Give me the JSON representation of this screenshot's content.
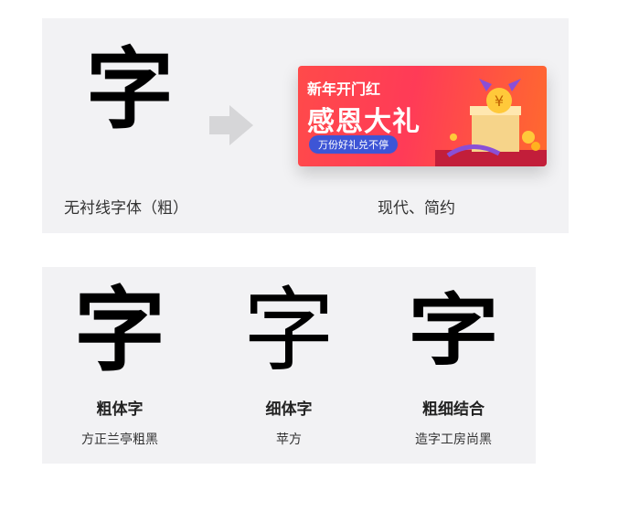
{
  "top": {
    "glyph": "字",
    "left_caption": "无衬线字体（粗）",
    "right_caption": "现代、简约",
    "banner": {
      "line1": "新年开门红",
      "line2": "感恩大礼",
      "pill": "万份好礼兑不停"
    }
  },
  "bottom": {
    "items": [
      {
        "glyph": "字",
        "title": "粗体字",
        "font": "方正兰亭粗黑"
      },
      {
        "glyph": "字",
        "title": "细体字",
        "font": "苹方"
      },
      {
        "glyph": "字",
        "title": "粗细结合",
        "font": "造字工房尚黑"
      }
    ]
  },
  "colors": {
    "panel": "#f2f2f4",
    "banner_red": "#ff3b57",
    "pill_blue": "#3d55d6"
  }
}
